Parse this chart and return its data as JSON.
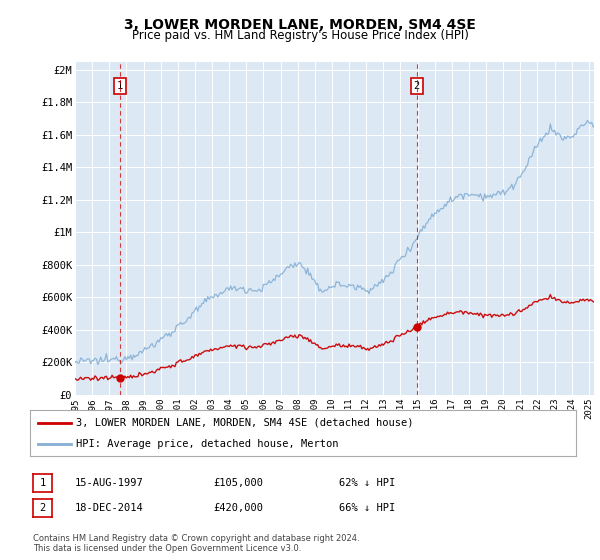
{
  "title": "3, LOWER MORDEN LANE, MORDEN, SM4 4SE",
  "subtitle": "Price paid vs. HM Land Registry's House Price Index (HPI)",
  "title_fontsize": 10,
  "subtitle_fontsize": 8.5,
  "background_color": "#dce9f5",
  "fig_bg_color": "#ffffff",
  "ylabel_ticks": [
    "£0",
    "£200K",
    "£400K",
    "£600K",
    "£800K",
    "£1M",
    "£1.2M",
    "£1.4M",
    "£1.6M",
    "£1.8M",
    "£2M"
  ],
  "ytick_values": [
    0,
    200000,
    400000,
    600000,
    800000,
    1000000,
    1200000,
    1400000,
    1600000,
    1800000,
    2000000
  ],
  "ylim": [
    0,
    2050000
  ],
  "xlim_start": 1995.0,
  "xlim_end": 2025.3,
  "sale1_x": 1997.619,
  "sale1_y": 105000,
  "sale1_label": "15-AUG-1997",
  "sale1_price": "£105,000",
  "sale1_hpi": "62% ↓ HPI",
  "sale2_x": 2014.959,
  "sale2_y": 420000,
  "sale2_label": "18-DEC-2014",
  "sale2_price": "£420,000",
  "sale2_hpi": "66% ↓ HPI",
  "red_line_color": "#cc0000",
  "blue_line_color": "#85afd4",
  "dashed_line_color": "#cc0000",
  "legend_label_red": "3, LOWER MORDEN LANE, MORDEN, SM4 4SE (detached house)",
  "legend_label_blue": "HPI: Average price, detached house, Merton",
  "footnote": "Contains HM Land Registry data © Crown copyright and database right 2024.\nThis data is licensed under the Open Government Licence v3.0.",
  "footnote_fontsize": 6.0,
  "annotation_fontsize": 7.5,
  "legend_fontsize": 7.5
}
